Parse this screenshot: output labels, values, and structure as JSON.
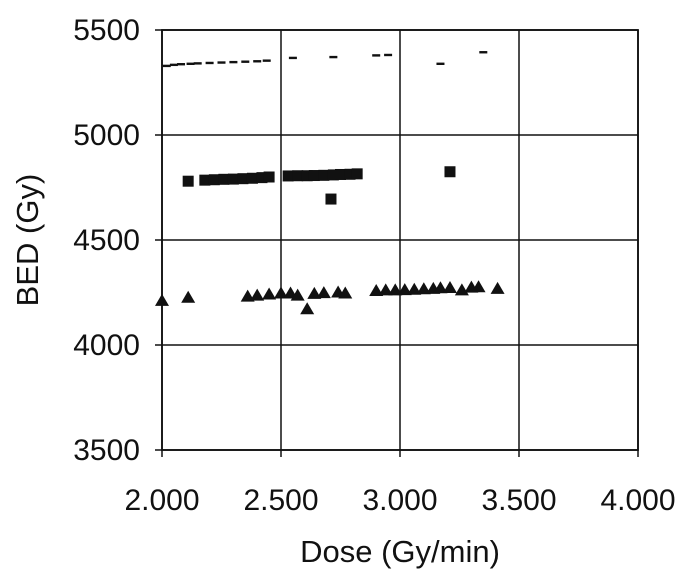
{
  "chart_data": {
    "type": "scatter",
    "title": "",
    "xlabel": "Dose (Gy/min)",
    "ylabel": "BED (Gy)",
    "xlim": [
      2.0,
      4.0
    ],
    "ylim": [
      3500,
      5500
    ],
    "xticks": [
      2.0,
      2.5,
      3.0,
      3.5,
      4.0
    ],
    "xtick_labels": [
      "2.000",
      "2.500",
      "3.000",
      "3.500",
      "4.000"
    ],
    "yticks": [
      3500,
      4000,
      4500,
      5000,
      5500
    ],
    "ytick_labels": [
      "3500",
      "4000",
      "4500",
      "5000",
      "5500"
    ],
    "grid": true,
    "legend": "none",
    "series": [
      {
        "marker": "dash",
        "color": "#111111",
        "points": [
          [
            2.02,
            5330
          ],
          [
            2.05,
            5335
          ],
          [
            2.08,
            5338
          ],
          [
            2.12,
            5340
          ],
          [
            2.15,
            5342
          ],
          [
            2.2,
            5344
          ],
          [
            2.25,
            5346
          ],
          [
            2.3,
            5348
          ],
          [
            2.35,
            5350
          ],
          [
            2.4,
            5352
          ],
          [
            2.44,
            5355
          ],
          [
            2.55,
            5368
          ],
          [
            2.72,
            5372
          ],
          [
            2.9,
            5380
          ],
          [
            2.95,
            5382
          ],
          [
            3.17,
            5340
          ],
          [
            3.35,
            5395
          ]
        ]
      },
      {
        "marker": "square",
        "color": "#111111",
        "points": [
          [
            2.11,
            4780
          ],
          [
            2.18,
            4785
          ],
          [
            2.22,
            4787
          ],
          [
            2.26,
            4789
          ],
          [
            2.3,
            4790
          ],
          [
            2.34,
            4792
          ],
          [
            2.38,
            4794
          ],
          [
            2.42,
            4797
          ],
          [
            2.45,
            4800
          ],
          [
            2.53,
            4805
          ],
          [
            2.57,
            4806
          ],
          [
            2.61,
            4806
          ],
          [
            2.64,
            4807
          ],
          [
            2.68,
            4808
          ],
          [
            2.72,
            4810
          ],
          [
            2.75,
            4812
          ],
          [
            2.79,
            4813
          ],
          [
            2.82,
            4815
          ],
          [
            2.71,
            4695
          ],
          [
            3.21,
            4825
          ]
        ]
      },
      {
        "marker": "triangle",
        "color": "#111111",
        "points": [
          [
            2.0,
            4215
          ],
          [
            2.11,
            4230
          ],
          [
            2.36,
            4235
          ],
          [
            2.4,
            4240
          ],
          [
            2.45,
            4245
          ],
          [
            2.5,
            4250
          ],
          [
            2.54,
            4250
          ],
          [
            2.57,
            4240
          ],
          [
            2.61,
            4175
          ],
          [
            2.64,
            4248
          ],
          [
            2.68,
            4252
          ],
          [
            2.74,
            4255
          ],
          [
            2.77,
            4250
          ],
          [
            2.9,
            4262
          ],
          [
            2.94,
            4265
          ],
          [
            2.98,
            4265
          ],
          [
            3.02,
            4266
          ],
          [
            3.06,
            4268
          ],
          [
            3.1,
            4270
          ],
          [
            3.14,
            4272
          ],
          [
            3.17,
            4275
          ],
          [
            3.21,
            4276
          ],
          [
            3.26,
            4265
          ],
          [
            3.3,
            4278
          ],
          [
            3.33,
            4280
          ],
          [
            3.41,
            4272
          ]
        ]
      }
    ]
  }
}
